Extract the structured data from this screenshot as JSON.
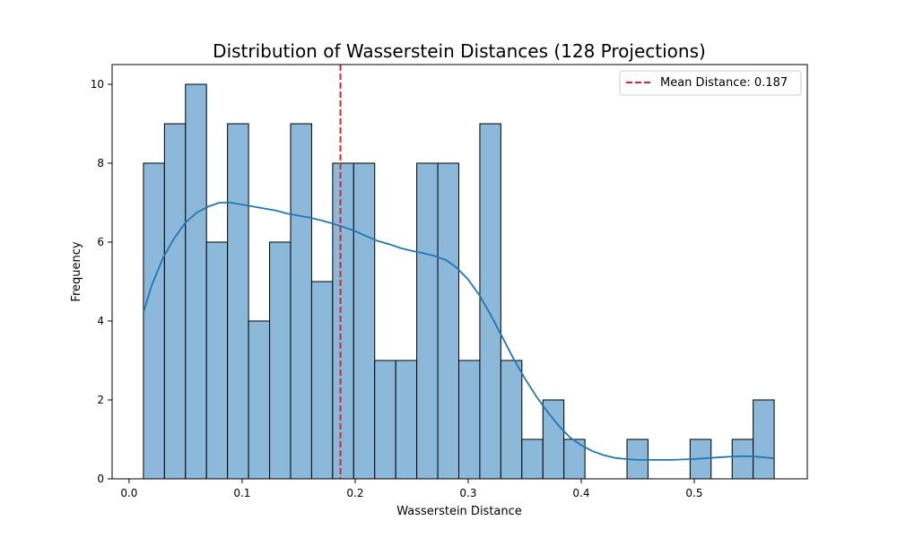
{
  "chart_data": {
    "type": "bar",
    "title": "Distribution of Wasserstein Distances (128 Projections)",
    "xlabel": "Wasserstein Distance",
    "ylabel": "Frequency",
    "xlim": [
      -0.015,
      0.6
    ],
    "ylim": [
      0,
      10.5
    ],
    "xticks": [
      0.0,
      0.1,
      0.2,
      0.3,
      0.4,
      0.5
    ],
    "xtick_labels": [
      "0.0",
      "0.1",
      "0.2",
      "0.3",
      "0.4",
      "0.5"
    ],
    "yticks": [
      0,
      2,
      4,
      6,
      8,
      10
    ],
    "ytick_labels": [
      "0",
      "2",
      "4",
      "6",
      "8",
      "10"
    ],
    "grid": false,
    "bin_edges": [
      0.0127,
      0.0313,
      0.0499,
      0.0685,
      0.0871,
      0.1057,
      0.1243,
      0.1429,
      0.1615,
      0.1801,
      0.1987,
      0.2173,
      0.2359,
      0.2545,
      0.2731,
      0.2917,
      0.3103,
      0.3289,
      0.3475,
      0.3661,
      0.3847,
      0.4033,
      0.4219,
      0.4405,
      0.4591,
      0.4777,
      0.4963,
      0.5149,
      0.5335,
      0.5521,
      0.5707
    ],
    "counts": [
      8,
      9,
      10,
      6,
      9,
      4,
      6,
      9,
      5,
      8,
      8,
      3,
      3,
      8,
      8,
      3,
      9,
      3,
      1,
      2,
      1,
      0,
      0,
      1,
      0,
      0,
      1,
      0,
      1,
      2
    ],
    "bar_color": "#8cb8da",
    "bar_edge_color": "#000000",
    "kde": {
      "color": "#1f77b4",
      "x": [
        0.013,
        0.02,
        0.03,
        0.04,
        0.05,
        0.06,
        0.07,
        0.08,
        0.09,
        0.1,
        0.11,
        0.12,
        0.13,
        0.14,
        0.15,
        0.16,
        0.17,
        0.18,
        0.19,
        0.2,
        0.21,
        0.22,
        0.23,
        0.24,
        0.25,
        0.26,
        0.27,
        0.28,
        0.29,
        0.3,
        0.31,
        0.32,
        0.33,
        0.34,
        0.35,
        0.36,
        0.37,
        0.38,
        0.39,
        0.4,
        0.41,
        0.42,
        0.43,
        0.44,
        0.45,
        0.46,
        0.47,
        0.48,
        0.49,
        0.5,
        0.51,
        0.52,
        0.53,
        0.54,
        0.55,
        0.56,
        0.57
      ],
      "y": [
        4.25,
        4.9,
        5.6,
        6.1,
        6.5,
        6.75,
        6.9,
        7.0,
        7.0,
        6.95,
        6.9,
        6.85,
        6.8,
        6.72,
        6.67,
        6.62,
        6.55,
        6.47,
        6.38,
        6.28,
        6.15,
        6.03,
        5.95,
        5.85,
        5.78,
        5.72,
        5.65,
        5.55,
        5.35,
        5.05,
        4.65,
        4.15,
        3.6,
        3.05,
        2.55,
        2.1,
        1.7,
        1.35,
        1.05,
        0.85,
        0.7,
        0.6,
        0.53,
        0.5,
        0.48,
        0.48,
        0.48,
        0.48,
        0.49,
        0.5,
        0.52,
        0.54,
        0.56,
        0.57,
        0.57,
        0.55,
        0.52
      ]
    },
    "mean_line": {
      "x": 0.187,
      "color": "#d62728",
      "style": "dashed",
      "label": "Mean Distance: 0.187"
    },
    "legend": {
      "placement": "top-right",
      "entries": [
        "Mean Distance: 0.187"
      ]
    }
  }
}
